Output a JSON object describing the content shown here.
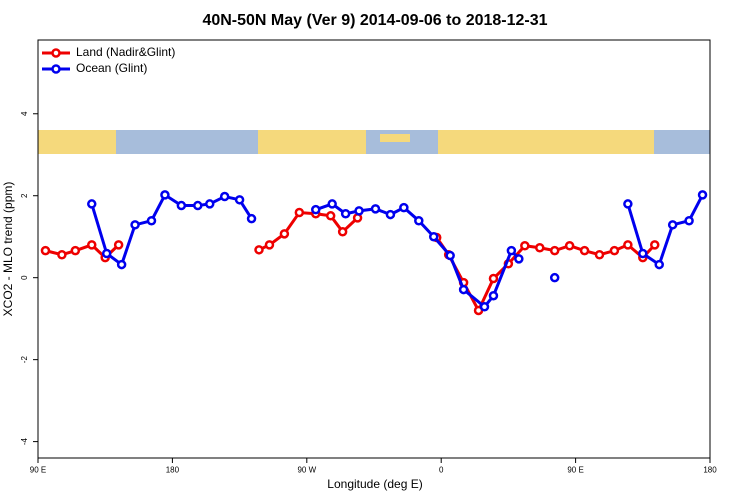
{
  "chart_data": {
    "type": "line",
    "title": "40N-50N May (Ver 9)   2014-09-06 to 2018-12-31",
    "x_label": "Longitude (deg E)",
    "y_label": "XCO2 - MLO trend (ppm)",
    "xlim": [
      90,
      540
    ],
    "ylim": [
      -4.4,
      5.8
    ],
    "xticks": [
      {
        "value": 90,
        "label": "90 E"
      },
      180,
      {
        "value": 270,
        "label": "90 W"
      },
      {
        "value": 360,
        "label": "0"
      },
      {
        "value": 450,
        "label": "90 E"
      },
      {
        "value": 540,
        "label": "180"
      }
    ],
    "yticks": [
      -4,
      -2,
      0,
      2,
      4
    ],
    "legend": "top-left",
    "series": [
      {
        "name": "Land (Nadir&Glint)",
        "color": "#ee0000",
        "x": [
          95,
          106,
          115,
          126,
          135,
          144,
          190,
          238,
          245,
          255,
          265,
          276,
          286,
          294,
          304,
          330,
          357,
          365,
          375,
          385,
          395,
          405,
          416,
          426,
          436,
          446,
          456,
          466,
          476,
          485,
          495,
          503
        ],
        "values": [
          0.66,
          0.56,
          0.66,
          0.8,
          0.49,
          0.8,
          null,
          0.68,
          0.8,
          1.07,
          1.59,
          1.56,
          1.51,
          1.12,
          1.46,
          null,
          0.98,
          0.56,
          -0.12,
          -0.8,
          -0.02,
          0.34,
          0.78,
          0.73,
          0.66,
          0.78,
          0.66,
          0.56,
          0.66,
          0.8,
          0.49,
          0.8
        ]
      },
      {
        "name": "Ocean (Glint)",
        "color": "#0000ee",
        "x": [
          126,
          136,
          146,
          155,
          166,
          175,
          186,
          197,
          205,
          215,
          225,
          233,
          255,
          276,
          287,
          296,
          305,
          316,
          326,
          335,
          345,
          355,
          366,
          375,
          389,
          395,
          407,
          412,
          425,
          436,
          460,
          485,
          495,
          506,
          515,
          526,
          535
        ],
        "values": [
          1.8,
          0.59,
          0.32,
          1.29,
          1.39,
          2.02,
          1.76,
          1.76,
          1.8,
          1.98,
          1.9,
          1.44,
          null,
          1.66,
          1.8,
          1.56,
          1.63,
          1.68,
          1.54,
          1.71,
          1.39,
          1.0,
          0.54,
          -0.29,
          -0.71,
          -0.44,
          0.66,
          0.46,
          null,
          0.0,
          null,
          1.8,
          0.59,
          0.32,
          1.29,
          1.39,
          2.02
        ]
      }
    ]
  }
}
